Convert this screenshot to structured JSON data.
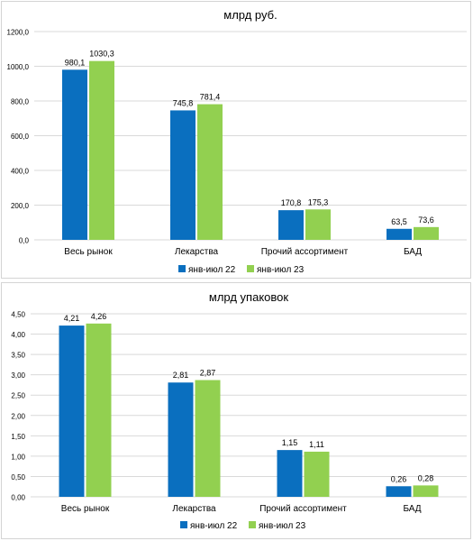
{
  "chart_data": [
    {
      "type": "bar",
      "title": "млрд руб.",
      "categories": [
        "Весь рынок",
        "Лекарства",
        "Прочий ассортимент",
        "БАД"
      ],
      "ylim": [
        0,
        1200
      ],
      "yticks": [
        "0,0",
        "200,0",
        "400,0",
        "600,0",
        "800,0",
        "1000,0",
        "1200,0"
      ],
      "grid": true,
      "legend": "bottom",
      "series": [
        {
          "name": "янв-июл 22",
          "color": "#0a6fbf",
          "values": [
            980.1,
            745.8,
            170.8,
            63.5
          ],
          "labels": [
            "980,1",
            "745,8",
            "170,8",
            "63,5"
          ]
        },
        {
          "name": "янв-июл 23",
          "color": "#92d050",
          "values": [
            1030.3,
            781.4,
            175.3,
            73.6
          ],
          "labels": [
            "1030,3",
            "781,4",
            "175,3",
            "73,6"
          ]
        }
      ]
    },
    {
      "type": "bar",
      "title": "млрд упаковок",
      "categories": [
        "Весь рынок",
        "Лекарства",
        "Прочий ассортимент",
        "БАД"
      ],
      "ylim": [
        0,
        4.5
      ],
      "yticks": [
        "0,00",
        "0,50",
        "1,00",
        "1,50",
        "2,00",
        "2,50",
        "3,00",
        "3,50",
        "4,00",
        "4,50"
      ],
      "grid": true,
      "legend": "bottom",
      "series": [
        {
          "name": "янв-июл 22",
          "color": "#0a6fbf",
          "values": [
            4.21,
            2.81,
            1.15,
            0.26
          ],
          "labels": [
            "4,21",
            "2,81",
            "1,15",
            "0,26"
          ]
        },
        {
          "name": "янв-июл 23",
          "color": "#92d050",
          "values": [
            4.26,
            2.87,
            1.11,
            0.28
          ],
          "labels": [
            "4,26",
            "2,87",
            "1,11",
            "0,28"
          ]
        }
      ]
    }
  ]
}
